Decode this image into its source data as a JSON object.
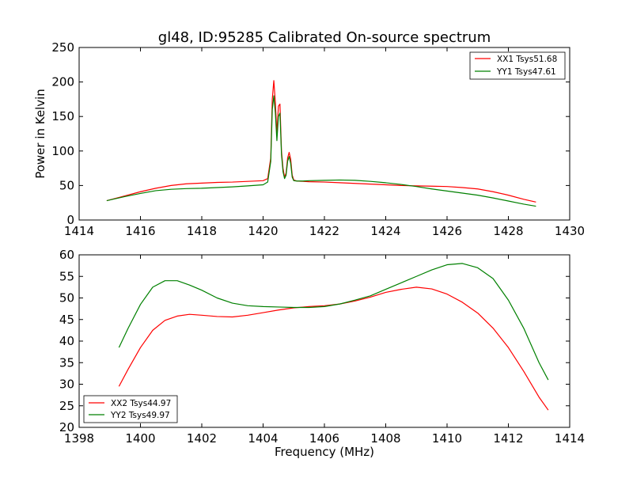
{
  "chart_data": [
    {
      "type": "line",
      "title": "gl48, ID:95285 Calibrated On-source spectrum",
      "xlabel": "",
      "ylabel": "Power in Kelvin",
      "xlim": [
        1414,
        1430
      ],
      "ylim": [
        0,
        250
      ],
      "xticks": [
        1414,
        1416,
        1418,
        1420,
        1422,
        1424,
        1426,
        1428,
        1430
      ],
      "yticks": [
        0,
        50,
        100,
        150,
        200,
        250
      ],
      "grid": false,
      "legend_position": "top-right",
      "series": [
        {
          "name": "XX1 Tsys51.68",
          "color": "#ff0000",
          "x": [
            1414.9,
            1415.5,
            1416.0,
            1416.5,
            1417.0,
            1417.5,
            1418.0,
            1418.5,
            1419.0,
            1419.5,
            1420.0,
            1420.15,
            1420.25,
            1420.3,
            1420.35,
            1420.4,
            1420.45,
            1420.5,
            1420.55,
            1420.6,
            1420.65,
            1420.7,
            1420.75,
            1420.8,
            1420.85,
            1420.9,
            1420.95,
            1421.0,
            1421.1,
            1421.3,
            1421.5,
            1422.0,
            1422.5,
            1423.0,
            1423.5,
            1424.0,
            1424.5,
            1425.0,
            1425.5,
            1426.0,
            1426.5,
            1427.0,
            1427.5,
            1428.0,
            1428.5,
            1428.9
          ],
          "y": [
            28,
            35,
            41,
            46,
            50,
            52.5,
            53.5,
            54.5,
            55,
            56,
            57,
            60,
            90,
            175,
            202,
            170,
            125,
            165,
            168,
            100,
            75,
            62,
            68,
            90,
            98,
            88,
            65,
            58,
            56.5,
            56,
            55.5,
            55,
            54,
            53,
            52,
            51,
            50,
            49.5,
            49,
            48.5,
            47,
            45,
            41,
            36,
            30,
            26
          ]
        },
        {
          "name": "YY1 Tsys47.61",
          "color": "#008000",
          "x": [
            1414.9,
            1415.5,
            1416.0,
            1416.5,
            1417.0,
            1417.5,
            1418.0,
            1418.5,
            1419.0,
            1419.5,
            1420.0,
            1420.15,
            1420.25,
            1420.3,
            1420.35,
            1420.4,
            1420.45,
            1420.5,
            1420.55,
            1420.6,
            1420.65,
            1420.7,
            1420.75,
            1420.8,
            1420.85,
            1420.9,
            1420.95,
            1421.0,
            1421.1,
            1421.3,
            1421.5,
            1422.0,
            1422.5,
            1423.0,
            1423.5,
            1424.0,
            1424.5,
            1425.0,
            1425.5,
            1426.0,
            1426.5,
            1427.0,
            1427.5,
            1428.0,
            1428.5,
            1428.9
          ],
          "y": [
            28,
            34,
            38.5,
            42.5,
            44.5,
            45.5,
            46,
            47,
            48,
            49.5,
            51,
            55,
            85,
            160,
            180,
            155,
            115,
            150,
            155,
            95,
            70,
            60,
            65,
            85,
            92,
            82,
            62,
            57,
            56.5,
            56.5,
            57,
            57.5,
            58,
            57.5,
            56,
            54,
            51.5,
            48.5,
            45,
            42,
            39,
            36,
            32,
            27.5,
            23,
            20
          ]
        }
      ]
    },
    {
      "type": "line",
      "title": "",
      "xlabel": "Frequency (MHz)",
      "ylabel": "",
      "xlim": [
        1398,
        1414
      ],
      "ylim": [
        20,
        60
      ],
      "xticks": [
        1398,
        1400,
        1402,
        1404,
        1406,
        1408,
        1410,
        1412,
        1414
      ],
      "yticks": [
        20,
        25,
        30,
        35,
        40,
        45,
        50,
        55,
        60
      ],
      "grid": false,
      "legend_position": "bottom-left",
      "series": [
        {
          "name": "XX2 Tsys44.97",
          "color": "#ff0000",
          "x": [
            1399.3,
            1399.6,
            1400.0,
            1400.4,
            1400.8,
            1401.2,
            1401.6,
            1402.0,
            1402.5,
            1403.0,
            1403.5,
            1404.0,
            1404.5,
            1405.0,
            1405.5,
            1406.0,
            1406.5,
            1407.0,
            1407.5,
            1408.0,
            1408.5,
            1409.0,
            1409.5,
            1410.0,
            1410.5,
            1411.0,
            1411.5,
            1412.0,
            1412.5,
            1413.0,
            1413.3
          ],
          "y": [
            29.5,
            33.5,
            38.5,
            42.5,
            44.8,
            45.8,
            46.2,
            46,
            45.7,
            45.6,
            46,
            46.6,
            47.2,
            47.7,
            48,
            48.2,
            48.6,
            49.3,
            50.2,
            51.3,
            52,
            52.5,
            52.1,
            50.9,
            49,
            46.5,
            43,
            38.5,
            33,
            27,
            24
          ]
        },
        {
          "name": "YY2 Tsys49.97",
          "color": "#008000",
          "x": [
            1399.3,
            1399.6,
            1400.0,
            1400.4,
            1400.8,
            1401.2,
            1401.6,
            1402.0,
            1402.5,
            1403.0,
            1403.5,
            1404.0,
            1404.5,
            1405.0,
            1405.5,
            1406.0,
            1406.5,
            1407.0,
            1407.5,
            1408.0,
            1408.5,
            1409.0,
            1409.5,
            1410.0,
            1410.5,
            1411.0,
            1411.5,
            1412.0,
            1412.5,
            1413.0,
            1413.3
          ],
          "y": [
            38.5,
            43,
            48.5,
            52.5,
            54,
            54,
            53,
            51.8,
            50,
            48.8,
            48.2,
            48,
            47.9,
            47.8,
            47.8,
            48,
            48.6,
            49.5,
            50.5,
            52,
            53.5,
            55,
            56.5,
            57.7,
            58,
            57,
            54.5,
            49.5,
            43,
            35,
            31
          ]
        }
      ]
    }
  ]
}
